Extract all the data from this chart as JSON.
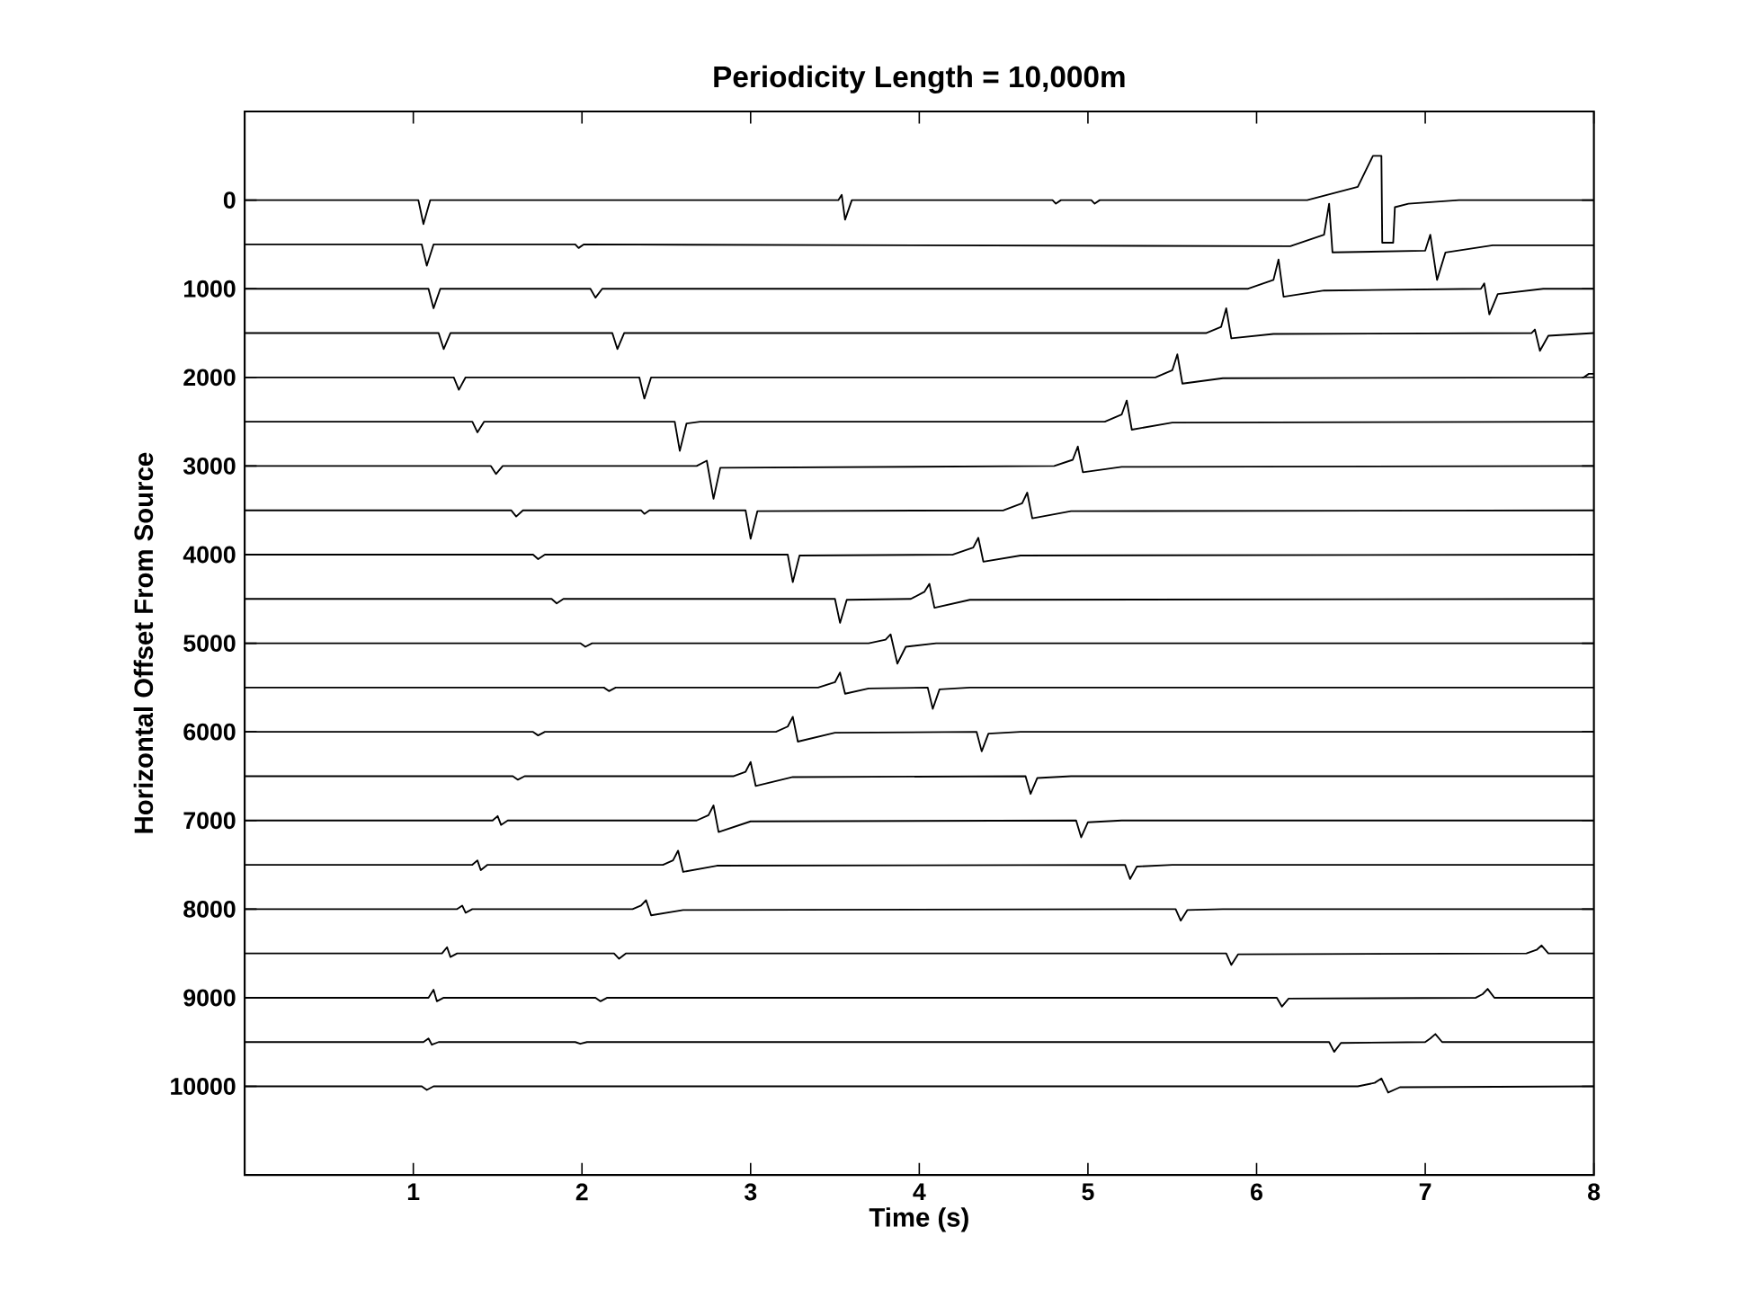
{
  "chart_data": {
    "type": "line",
    "title": "Periodicity Length = 10,000m",
    "xlabel": "Time (s)",
    "ylabel": "Horizontal Offset From Source",
    "xlim": [
      0,
      8
    ],
    "ylim": [
      11000,
      -1000
    ],
    "xticks": [
      1,
      2,
      3,
      4,
      5,
      6,
      7,
      8
    ],
    "yticks": [
      0,
      1000,
      2000,
      3000,
      4000,
      5000,
      6000,
      7000,
      8000,
      9000,
      10000
    ],
    "series": [
      {
        "color": "#000000",
        "x": [
          0,
          1.03,
          1.06,
          1.1,
          3.52,
          3.54,
          3.56,
          3.6,
          4.79,
          4.81,
          4.84,
          5.02,
          5.04,
          5.07,
          6.3,
          6.6,
          6.69,
          6.74,
          6.745,
          6.81,
          6.82,
          6.9,
          7.2,
          8
        ],
        "values": [
          0,
          0,
          270,
          0,
          0,
          -60,
          220,
          0,
          0,
          40,
          0,
          0,
          40,
          0,
          0,
          -150,
          -500,
          -500,
          480,
          480,
          80,
          40,
          0,
          0
        ]
      },
      {
        "color": "#000000",
        "x": [
          0,
          1.05,
          1.08,
          1.12,
          1.96,
          1.98,
          2.01,
          6.2,
          6.4,
          6.43,
          6.45,
          7.0,
          7.03,
          7.07,
          7.12,
          7.4,
          8
        ],
        "values": [
          500,
          500,
          740,
          500,
          500,
          540,
          500,
          520,
          390,
          40,
          590,
          570,
          390,
          900,
          590,
          510,
          510
        ]
      },
      {
        "color": "#000000",
        "x": [
          0,
          1.09,
          1.12,
          1.16,
          2.05,
          2.08,
          2.12,
          5.95,
          6.1,
          6.13,
          6.16,
          6.4,
          7.33,
          7.35,
          7.38,
          7.43,
          7.7,
          8
        ],
        "values": [
          1000,
          1000,
          1220,
          1000,
          1000,
          1100,
          1000,
          1000,
          900,
          670,
          1090,
          1020,
          1000,
          940,
          1290,
          1060,
          1000,
          1000
        ]
      },
      {
        "color": "#000000",
        "x": [
          0,
          1.15,
          1.18,
          1.22,
          2.18,
          2.21,
          2.25,
          5.7,
          5.79,
          5.82,
          5.85,
          6.1,
          7.63,
          7.65,
          7.68,
          7.73,
          8
        ],
        "values": [
          1500,
          1500,
          1680,
          1500,
          1500,
          1680,
          1500,
          1500,
          1430,
          1220,
          1560,
          1510,
          1500,
          1460,
          1700,
          1530,
          1500
        ]
      },
      {
        "color": "#000000",
        "x": [
          0,
          1.24,
          1.27,
          1.31,
          2.34,
          2.37,
          2.41,
          5.4,
          5.5,
          5.53,
          5.56,
          5.8,
          7.94,
          7.97,
          8
        ],
        "values": [
          2000,
          2000,
          2140,
          2000,
          2000,
          2240,
          2000,
          2000,
          1920,
          1740,
          2070,
          2010,
          2000,
          1960,
          1960
        ]
      },
      {
        "color": "#000000",
        "x": [
          0,
          1.35,
          1.38,
          1.42,
          2.55,
          2.58,
          2.62,
          2.7,
          5.1,
          5.2,
          5.23,
          5.26,
          5.5,
          8
        ],
        "values": [
          2500,
          2500,
          2620,
          2500,
          2500,
          2830,
          2520,
          2500,
          2500,
          2420,
          2260,
          2590,
          2510,
          2500
        ]
      },
      {
        "color": "#000000",
        "x": [
          0,
          1.46,
          1.49,
          1.53,
          2.68,
          2.74,
          2.78,
          2.82,
          4.8,
          4.91,
          4.94,
          4.97,
          5.2,
          8
        ],
        "values": [
          3000,
          3000,
          3090,
          3000,
          3000,
          2940,
          3370,
          3020,
          3000,
          2930,
          2780,
          3070,
          3010,
          3000
        ]
      },
      {
        "color": "#000000",
        "x": [
          0,
          1.58,
          1.61,
          1.65,
          2.35,
          2.37,
          2.4,
          2.97,
          3.0,
          3.04,
          4.5,
          4.61,
          4.64,
          4.67,
          4.9,
          8
        ],
        "values": [
          3500,
          3500,
          3570,
          3500,
          3500,
          3540,
          3500,
          3500,
          3820,
          3510,
          3500,
          3420,
          3300,
          3590,
          3510,
          3500
        ]
      },
      {
        "color": "#000000",
        "x": [
          0,
          1.71,
          1.74,
          1.78,
          3.22,
          3.25,
          3.29,
          4.2,
          4.32,
          4.35,
          4.38,
          4.6,
          8
        ],
        "values": [
          4000,
          4000,
          4050,
          4000,
          4000,
          4310,
          4010,
          4000,
          3920,
          3810,
          4080,
          4010,
          4000
        ]
      },
      {
        "color": "#000000",
        "x": [
          0,
          1.82,
          1.85,
          1.89,
          3.5,
          3.53,
          3.57,
          3.95,
          4.03,
          4.06,
          4.09,
          4.3,
          8
        ],
        "values": [
          4500,
          4500,
          4550,
          4500,
          4500,
          4770,
          4510,
          4500,
          4420,
          4330,
          4600,
          4510,
          4500
        ]
      },
      {
        "color": "#000000",
        "x": [
          0,
          1.99,
          2.02,
          2.06,
          3.7,
          3.8,
          3.83,
          3.87,
          3.92,
          4.1,
          8
        ],
        "values": [
          5000,
          5000,
          5040,
          5000,
          5000,
          4960,
          4900,
          5230,
          5040,
          5000,
          5000
        ]
      },
      {
        "color": "#000000",
        "x": [
          0,
          2.13,
          2.16,
          2.2,
          3.4,
          3.5,
          3.53,
          3.56,
          3.7,
          4.05,
          4.08,
          4.12,
          4.3,
          8
        ],
        "values": [
          5500,
          5500,
          5540,
          5500,
          5500,
          5440,
          5330,
          5570,
          5510,
          5500,
          5740,
          5520,
          5500,
          5500
        ]
      },
      {
        "color": "#000000",
        "x": [
          0,
          1.71,
          1.74,
          1.78,
          3.15,
          3.22,
          3.25,
          3.28,
          3.5,
          4.34,
          4.37,
          4.41,
          4.6,
          8
        ],
        "values": [
          6000,
          6000,
          6040,
          6000,
          6000,
          5940,
          5830,
          6110,
          6010,
          6000,
          6220,
          6020,
          6000,
          6000
        ]
      },
      {
        "color": "#000000",
        "x": [
          0,
          1.59,
          1.62,
          1.66,
          2.9,
          2.97,
          3.0,
          3.03,
          3.25,
          4.63,
          4.66,
          4.7,
          4.9,
          8
        ],
        "values": [
          6500,
          6500,
          6540,
          6500,
          6500,
          6450,
          6340,
          6610,
          6510,
          6500,
          6700,
          6520,
          6500,
          6500
        ]
      },
      {
        "color": "#000000",
        "x": [
          0,
          1.47,
          1.5,
          1.52,
          1.56,
          2.68,
          2.75,
          2.78,
          2.81,
          3.0,
          4.93,
          4.96,
          5.0,
          5.2,
          8
        ],
        "values": [
          7000,
          7000,
          6950,
          7050,
          7000,
          7000,
          6940,
          6830,
          7130,
          7010,
          7000,
          7190,
          7020,
          7000,
          7000
        ]
      },
      {
        "color": "#000000",
        "x": [
          0,
          1.35,
          1.38,
          1.4,
          1.44,
          2.48,
          2.54,
          2.57,
          2.6,
          2.8,
          5.22,
          5.25,
          5.29,
          5.5,
          8
        ],
        "values": [
          7500,
          7500,
          7450,
          7560,
          7500,
          7500,
          7450,
          7340,
          7580,
          7510,
          7500,
          7660,
          7520,
          7500,
          7500
        ]
      },
      {
        "color": "#000000",
        "x": [
          0,
          1.26,
          1.29,
          1.31,
          1.35,
          2.3,
          2.35,
          2.38,
          2.41,
          2.6,
          5.52,
          5.55,
          5.59,
          5.8,
          8
        ],
        "values": [
          8000,
          8000,
          7960,
          8040,
          8000,
          8000,
          7960,
          7900,
          8070,
          8010,
          8000,
          8130,
          8010,
          8000,
          8000
        ]
      },
      {
        "color": "#000000",
        "x": [
          0,
          1.17,
          1.2,
          1.22,
          1.26,
          2.19,
          2.22,
          2.26,
          5.82,
          5.85,
          5.89,
          7.6,
          7.66,
          7.69,
          7.73,
          8
        ],
        "values": [
          8500,
          8500,
          8430,
          8540,
          8500,
          8500,
          8560,
          8500,
          8500,
          8630,
          8510,
          8500,
          8460,
          8410,
          8500,
          8500
        ]
      },
      {
        "color": "#000000",
        "x": [
          0,
          1.09,
          1.12,
          1.14,
          1.18,
          2.08,
          2.11,
          2.15,
          6.12,
          6.15,
          6.19,
          7.3,
          7.34,
          7.37,
          7.41,
          8
        ],
        "values": [
          9000,
          9000,
          8910,
          9040,
          9000,
          9000,
          9040,
          9000,
          9000,
          9100,
          9010,
          9000,
          8960,
          8900,
          9000,
          9000
        ]
      },
      {
        "color": "#000000",
        "x": [
          0,
          1.06,
          1.09,
          1.11,
          1.15,
          1.96,
          1.99,
          2.03,
          6.43,
          6.46,
          6.5,
          7.0,
          7.03,
          7.06,
          7.1,
          8
        ],
        "values": [
          9500,
          9500,
          9460,
          9530,
          9500,
          9500,
          9520,
          9500,
          9500,
          9610,
          9510,
          9500,
          9460,
          9410,
          9500,
          9500
        ]
      },
      {
        "color": "#000000",
        "x": [
          0,
          1.05,
          1.08,
          1.12,
          6.6,
          6.7,
          6.74,
          6.78,
          6.85,
          8
        ],
        "values": [
          10000,
          10000,
          10040,
          10000,
          10000,
          9960,
          9910,
          10070,
          10010,
          10000
        ]
      }
    ]
  }
}
